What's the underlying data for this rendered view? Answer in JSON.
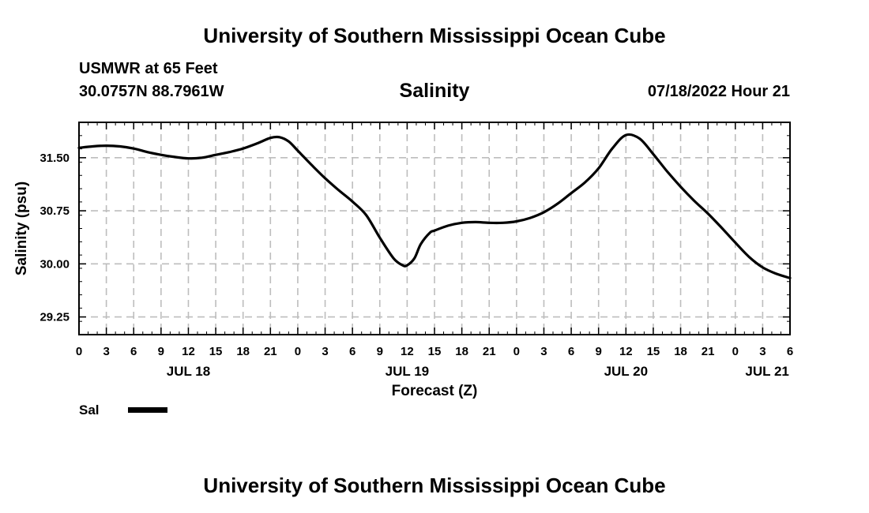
{
  "header": {
    "title": "University of Southern Mississippi Ocean Cube",
    "station_name": "USMWR at 65 Feet",
    "coordinates": "30.0757N  88.7961W",
    "run_time": "07/18/2022 Hour 21"
  },
  "footer": {
    "title": "University of Southern Mississippi Ocean Cube"
  },
  "legend": {
    "label": "Sal",
    "color": "#000000"
  },
  "chart_data": {
    "type": "line",
    "title": "Salinity",
    "xlabel": "Forecast (Z)",
    "ylabel": "Salinity (psu)",
    "x_unit": "hours since 07/18 00Z",
    "xlim": [
      0,
      78
    ],
    "ylim": [
      29.0,
      32.0
    ],
    "grid": true,
    "grid_style": "dashed",
    "legend_position": "bottom-left",
    "x_ticks": [
      0,
      3,
      6,
      9,
      12,
      15,
      18,
      21,
      24,
      27,
      30,
      33,
      36,
      39,
      42,
      45,
      48,
      51,
      54,
      57,
      60,
      63,
      66,
      69,
      72,
      75,
      78
    ],
    "x_tick_labels": [
      "0",
      "3",
      "6",
      "9",
      "12",
      "15",
      "18",
      "21",
      "0",
      "3",
      "6",
      "9",
      "12",
      "15",
      "18",
      "21",
      "0",
      "3",
      "6",
      "9",
      "12",
      "15",
      "18",
      "21",
      "0",
      "3",
      "6"
    ],
    "day_labels": [
      {
        "x": 12,
        "label": "JUL 18"
      },
      {
        "x": 36,
        "label": "JUL 19"
      },
      {
        "x": 60,
        "label": "JUL 20"
      },
      {
        "x": 75.5,
        "label": "JUL 21"
      }
    ],
    "y_ticks": [
      29.25,
      30.0,
      30.75,
      31.5
    ],
    "y_tick_labels": [
      "29.25",
      "30.00",
      "30.75",
      "31.50"
    ],
    "series": [
      {
        "name": "Sal",
        "color": "#000000",
        "x": [
          0,
          1.5,
          3,
          4.5,
          6,
          7.5,
          9,
          10.5,
          12,
          13.5,
          15,
          16.5,
          18,
          19.5,
          21,
          22,
          23,
          24,
          25.5,
          27,
          28.5,
          30,
          31.5,
          33,
          34.5,
          35.5,
          36,
          36.8,
          37.5,
          38.5,
          39,
          40.5,
          42,
          43.5,
          45,
          46.5,
          48,
          49.5,
          51,
          52.5,
          54,
          55.5,
          57,
          58.5,
          60,
          61.5,
          63,
          64.5,
          66,
          67.5,
          69,
          70.5,
          72,
          73.5,
          75,
          76.5,
          78
        ],
        "y": [
          31.64,
          31.66,
          31.67,
          31.66,
          31.63,
          31.58,
          31.54,
          31.51,
          31.49,
          31.5,
          31.54,
          31.58,
          31.63,
          31.7,
          31.78,
          31.79,
          31.73,
          31.6,
          31.4,
          31.21,
          31.04,
          30.88,
          30.69,
          30.37,
          30.08,
          29.98,
          29.98,
          30.08,
          30.28,
          30.44,
          30.47,
          30.54,
          30.58,
          30.59,
          30.58,
          30.58,
          30.6,
          30.65,
          30.73,
          30.85,
          31.0,
          31.15,
          31.35,
          31.63,
          31.82,
          31.77,
          31.55,
          31.31,
          31.09,
          30.89,
          30.71,
          30.51,
          30.3,
          30.1,
          29.95,
          29.86,
          29.8
        ]
      }
    ]
  }
}
